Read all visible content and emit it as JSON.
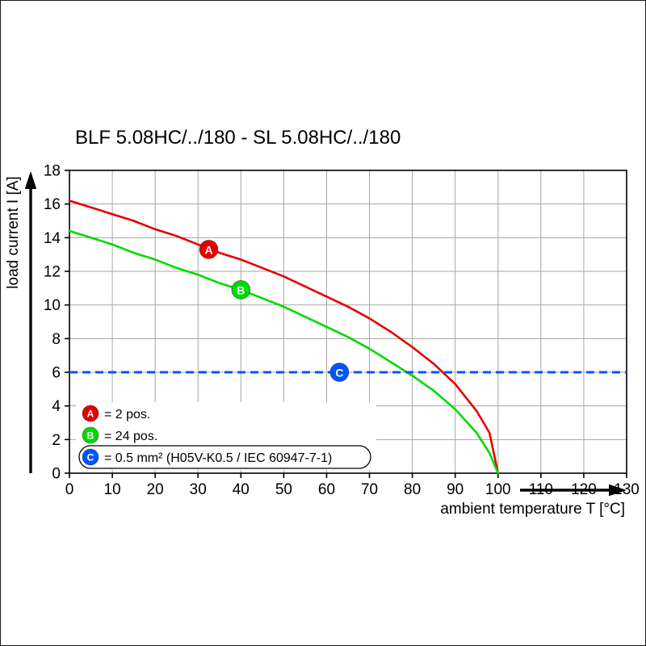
{
  "chart_data": {
    "type": "line",
    "title": "BLF 5.08HC/../180 - SL 5.08HC/../180",
    "xlabel": "ambient temperature T [°C]",
    "ylabel": "load current I [A]",
    "xlim": [
      0,
      130
    ],
    "ylim": [
      0,
      18
    ],
    "xticks": [
      0,
      10,
      20,
      30,
      40,
      50,
      60,
      70,
      80,
      90,
      100,
      110,
      120,
      130
    ],
    "yticks": [
      0,
      2,
      4,
      6,
      8,
      10,
      12,
      14,
      16,
      18
    ],
    "grid": true,
    "legend_position": "bottom-left-inside",
    "colors": {
      "grid": "#a6a6a6",
      "axis": "#000000",
      "background": "#ffffff"
    },
    "series": [
      {
        "id": "A",
        "legend_label": "= 2 pos.",
        "color": "#e60000",
        "marker": {
          "x": 32.5,
          "y": 13.3
        },
        "points": [
          [
            0,
            16.2
          ],
          [
            5,
            15.8
          ],
          [
            10,
            15.4
          ],
          [
            15,
            15.0
          ],
          [
            20,
            14.5
          ],
          [
            25,
            14.1
          ],
          [
            30,
            13.6
          ],
          [
            35,
            13.1
          ],
          [
            40,
            12.7
          ],
          [
            45,
            12.2
          ],
          [
            50,
            11.7
          ],
          [
            55,
            11.1
          ],
          [
            60,
            10.5
          ],
          [
            65,
            9.9
          ],
          [
            70,
            9.2
          ],
          [
            75,
            8.4
          ],
          [
            80,
            7.5
          ],
          [
            85,
            6.5
          ],
          [
            90,
            5.3
          ],
          [
            95,
            3.7
          ],
          [
            98,
            2.4
          ],
          [
            100,
            0
          ]
        ]
      },
      {
        "id": "B",
        "legend_label": "= 24 pos.",
        "color": "#00d900",
        "marker": {
          "x": 40,
          "y": 10.9
        },
        "points": [
          [
            0,
            14.4
          ],
          [
            5,
            14.0
          ],
          [
            10,
            13.6
          ],
          [
            15,
            13.1
          ],
          [
            20,
            12.7
          ],
          [
            25,
            12.2
          ],
          [
            30,
            11.8
          ],
          [
            35,
            11.3
          ],
          [
            40,
            10.9
          ],
          [
            45,
            10.4
          ],
          [
            50,
            9.9
          ],
          [
            55,
            9.3
          ],
          [
            60,
            8.7
          ],
          [
            65,
            8.1
          ],
          [
            70,
            7.4
          ],
          [
            75,
            6.6
          ],
          [
            80,
            5.8
          ],
          [
            85,
            4.9
          ],
          [
            90,
            3.8
          ],
          [
            95,
            2.4
          ],
          [
            98,
            1.2
          ],
          [
            100,
            0
          ]
        ]
      },
      {
        "id": "C",
        "legend_label": "= 0.5 mm² (H05V-K0.5 / IEC 60947-7-1)",
        "color": "#0055ff",
        "line_style": "dashed",
        "hline": 6,
        "boxed_legend": true,
        "marker": {
          "x": 63,
          "y": 6
        }
      }
    ]
  }
}
